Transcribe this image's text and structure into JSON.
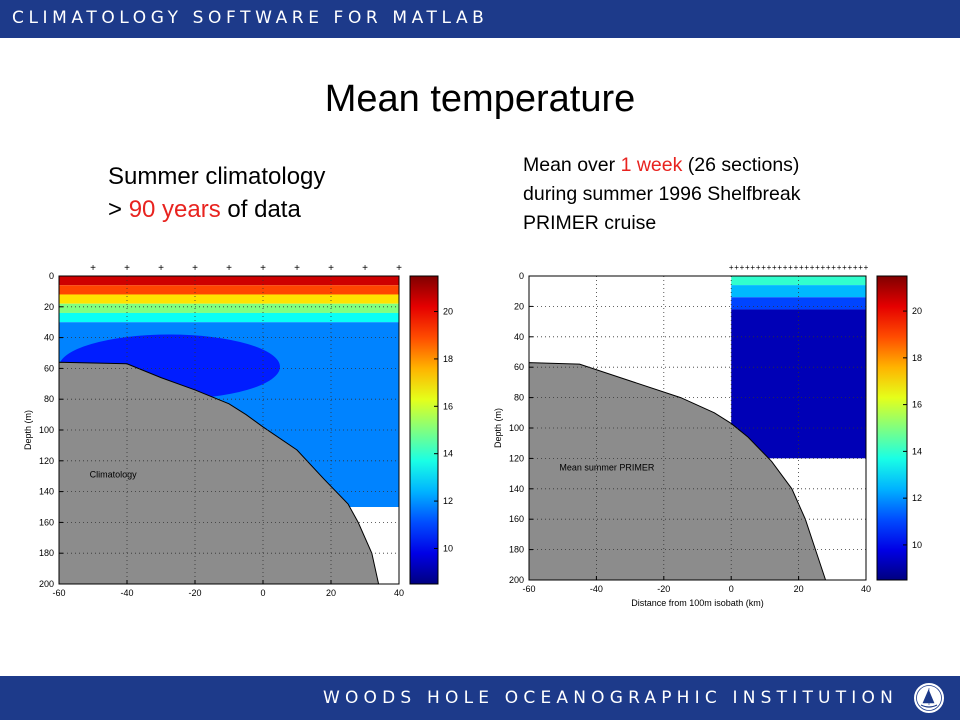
{
  "header": {
    "title": "CLIMATOLOGY SOFTWARE FOR MATLAB"
  },
  "slide": {
    "title": "Mean temperature",
    "left_caption": {
      "line1": "Summer climatology",
      "line2_prefix": "> ",
      "line2_highlight": "90 years",
      "line2_suffix": " of data"
    },
    "right_caption": {
      "line1_prefix": "Mean over ",
      "line1_highlight": "1 week",
      "line1_suffix": " (26 sections)",
      "line2": "during summer 1996 Shelfbreak",
      "line3": "PRIMER cruise"
    }
  },
  "footer": {
    "institution": "WOODS HOLE OCEANOGRAPHIC INSTITUTION",
    "logo_icon": "whoi-seal-icon"
  },
  "colors": {
    "bar": "#1d3a8a",
    "highlight": "#e8231f",
    "bathymetry": "#8c8c8c"
  },
  "chart_data": [
    {
      "type": "heatmap",
      "title": "",
      "annotation": "Climatology",
      "xlabel": "",
      "ylabel": "Depth (m)",
      "xlim": [
        -60,
        40
      ],
      "ylim": [
        0,
        200
      ],
      "y_reversed": true,
      "xticks": [
        -60,
        -40,
        -20,
        0,
        20,
        40
      ],
      "yticks": [
        0,
        20,
        40,
        60,
        80,
        100,
        120,
        140,
        160,
        180,
        200
      ],
      "grid": true,
      "station_marks_x": [
        -50,
        -40,
        -30,
        -20,
        -10,
        0,
        10,
        20,
        30,
        40
      ],
      "data_coverage_x": [
        -60,
        40
      ],
      "bottom_profile": [
        [
          -60,
          56
        ],
        [
          -40,
          57
        ],
        [
          -30,
          66
        ],
        [
          -20,
          74
        ],
        [
          -10,
          83
        ],
        [
          -5,
          90
        ],
        [
          0,
          98
        ],
        [
          10,
          113
        ],
        [
          18,
          132
        ],
        [
          25,
          148
        ],
        [
          28,
          160
        ],
        [
          32,
          180
        ],
        [
          34,
          200
        ]
      ],
      "temperature_layers": [
        {
          "top": 0,
          "bottom": 6,
          "temp": 20.5
        },
        {
          "top": 6,
          "bottom": 12,
          "temp": 19
        },
        {
          "top": 12,
          "bottom": 18,
          "temp": 17
        },
        {
          "top": 18,
          "bottom": 24,
          "temp": 15
        },
        {
          "top": 24,
          "bottom": 30,
          "temp": 13.5
        },
        {
          "top": 30,
          "bottom": 150,
          "temp": 11.8
        }
      ],
      "cold_pool": {
        "x_range": [
          -60,
          5
        ],
        "depth_range": [
          38,
          80
        ],
        "temp": 10.5
      },
      "colorbar": {
        "ticks": [
          10,
          12,
          14,
          16,
          18,
          20
        ],
        "range": [
          8.5,
          21.5
        ]
      }
    },
    {
      "type": "heatmap",
      "title": "",
      "annotation": "Mean summer PRIMER",
      "xlabel": "Distance from 100m isobath (km)",
      "ylabel": "Depth (m)",
      "xlim": [
        -60,
        40
      ],
      "ylim": [
        0,
        200
      ],
      "y_reversed": true,
      "xticks": [
        -60,
        -40,
        -20,
        0,
        20,
        40
      ],
      "yticks": [
        0,
        20,
        40,
        60,
        80,
        100,
        120,
        140,
        160,
        180,
        200
      ],
      "grid": true,
      "station_marks_x": [
        0,
        40
      ],
      "data_coverage_x": [
        0,
        40
      ],
      "data_max_depth": 120,
      "bottom_profile": [
        [
          -60,
          57
        ],
        [
          -45,
          58
        ],
        [
          -30,
          69
        ],
        [
          -15,
          80
        ],
        [
          -5,
          90
        ],
        [
          0,
          97
        ],
        [
          5,
          106
        ],
        [
          12,
          122
        ],
        [
          18,
          140
        ],
        [
          22,
          160
        ],
        [
          25,
          180
        ],
        [
          28,
          200
        ]
      ],
      "temperature_layers": [
        {
          "top": 0,
          "bottom": 6,
          "temp": 14
        },
        {
          "top": 6,
          "bottom": 14,
          "temp": 12.5
        },
        {
          "top": 14,
          "bottom": 22,
          "temp": 11
        },
        {
          "top": 22,
          "bottom": 120,
          "temp": 9.2
        }
      ],
      "colorbar": {
        "ticks": [
          10,
          12,
          14,
          16,
          18,
          20
        ],
        "range": [
          8.5,
          21.5
        ]
      }
    }
  ]
}
